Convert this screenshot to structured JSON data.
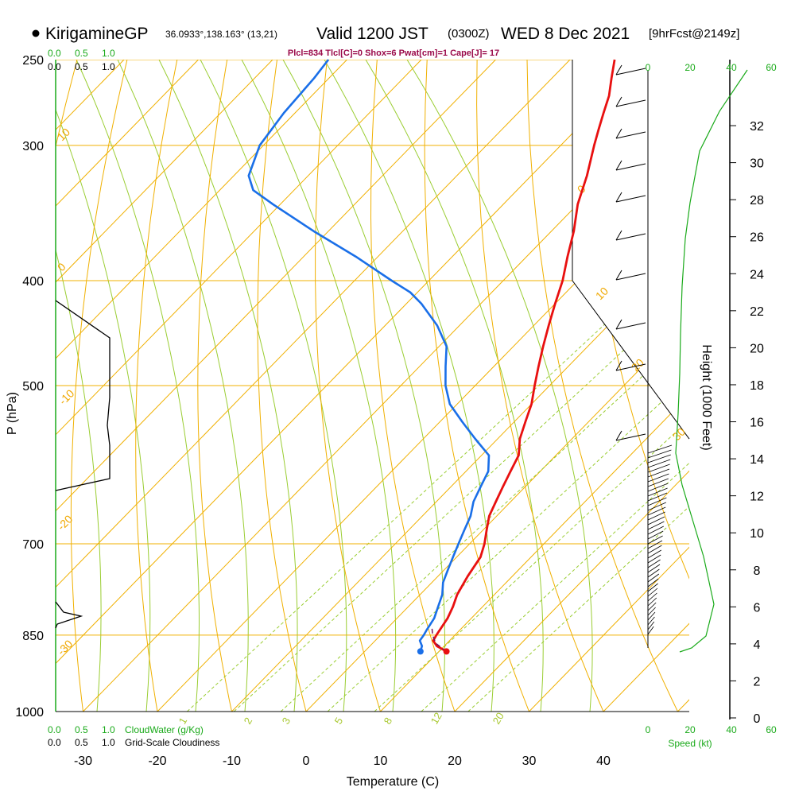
{
  "header": {
    "station": "KirigamineGP",
    "coords": "36.0933°,138.163° (13,21)",
    "valid_prefix": "Valid 1200 JST",
    "valid_z": "(0300Z)",
    "date": "WED 8 Dec 2021",
    "forecast": "[9hrFcst@2149z]",
    "params": "Plcl=834 Tlcl[C]=0 Shox=6 Pwat[cm]=1 Cape[J]= 17"
  },
  "labels": {
    "cloud_water": "CloudWater (g/Kg)",
    "cloudiness": "Grid-Scale Cloudiness",
    "speed": "Speed (kt)",
    "scale_top": [
      "0.0",
      "0.5",
      "1.0"
    ],
    "speed_ticks": [
      "0",
      "20",
      "40",
      "60"
    ]
  },
  "colors": {
    "temperature": "#e81010",
    "dewpoint": "#1a6fe8",
    "isotherm": "#f0b000",
    "dry_adiabat": "#f0b000",
    "moist_adiabat": "#9acd32",
    "mixing_ratio": "#9acd32",
    "cloudiness": "#000000",
    "wind_speed": "#1aaa1a",
    "parcel": "#7a1a5a"
  },
  "chart_data": {
    "type": "line",
    "title": "KirigamineGP",
    "xlabel": "Temperature (C)",
    "ylabel": "P (hPa)",
    "y2label": "Height (1000 Feet)",
    "x_ticks": [
      "-30",
      "-20",
      "-10",
      "0",
      "10",
      "20",
      "30",
      "40"
    ],
    "p_ticks": [
      "250",
      "300",
      "400",
      "500",
      "700",
      "850",
      "1000"
    ],
    "height_ticks": [
      "0",
      "2",
      "4",
      "6",
      "8",
      "10",
      "12",
      "14",
      "16",
      "18",
      "20",
      "22",
      "24",
      "26",
      "28",
      "30",
      "32"
    ],
    "isotherm_labels": [
      "10",
      "0",
      "-10",
      "-20",
      "-30",
      "0",
      "10",
      "20",
      "30"
    ],
    "mixing_ratio_labels": [
      "1",
      "2",
      "3",
      "5",
      "8",
      "12",
      "20"
    ],
    "series": [
      {
        "name": "Temperature",
        "points": [
          [
            880,
            11.0
          ],
          [
            870,
            9.0
          ],
          [
            860,
            7.8
          ],
          [
            850,
            7.5
          ],
          [
            820,
            6.8
          ],
          [
            800,
            6.0
          ],
          [
            780,
            5.0
          ],
          [
            750,
            4.0
          ],
          [
            720,
            3.2
          ],
          [
            700,
            2.0
          ],
          [
            680,
            0.5
          ],
          [
            660,
            -1.0
          ],
          [
            640,
            -2.0
          ],
          [
            620,
            -3.0
          ],
          [
            600,
            -4.0
          ],
          [
            580,
            -5.0
          ],
          [
            560,
            -7.0
          ],
          [
            540,
            -8.5
          ],
          [
            520,
            -10.0
          ],
          [
            500,
            -12.0
          ],
          [
            480,
            -14.0
          ],
          [
            460,
            -16.0
          ],
          [
            440,
            -18.0
          ],
          [
            420,
            -20.0
          ],
          [
            400,
            -22.0
          ],
          [
            380,
            -24.5
          ],
          [
            360,
            -27.0
          ],
          [
            340,
            -30.0
          ],
          [
            320,
            -32.5
          ],
          [
            300,
            -35.5
          ],
          [
            290,
            -37.0
          ],
          [
            280,
            -38.5
          ],
          [
            270,
            -40.0
          ],
          [
            260,
            -42.0
          ],
          [
            250,
            -44.0
          ]
        ]
      },
      {
        "name": "Dewpoint",
        "points": [
          [
            880,
            7.5
          ],
          [
            870,
            7.0
          ],
          [
            860,
            6.0
          ],
          [
            850,
            5.8
          ],
          [
            840,
            5.5
          ],
          [
            820,
            5.0
          ],
          [
            800,
            4.0
          ],
          [
            780,
            3.0
          ],
          [
            760,
            1.5
          ],
          [
            740,
            0.5
          ],
          [
            720,
            -0.5
          ],
          [
            700,
            -1.5
          ],
          [
            680,
            -2.5
          ],
          [
            660,
            -3.5
          ],
          [
            640,
            -5.0
          ],
          [
            620,
            -6.0
          ],
          [
            600,
            -7.0
          ],
          [
            580,
            -9.0
          ],
          [
            560,
            -13.0
          ],
          [
            540,
            -17.0
          ],
          [
            520,
            -21.0
          ],
          [
            500,
            -24.0
          ],
          [
            480,
            -26.5
          ],
          [
            460,
            -29.0
          ],
          [
            440,
            -33.0
          ],
          [
            420,
            -38.0
          ],
          [
            410,
            -41.0
          ],
          [
            400,
            -45.0
          ],
          [
            380,
            -53.0
          ],
          [
            360,
            -62.0
          ],
          [
            340,
            -71.0
          ],
          [
            330,
            -75.5
          ],
          [
            320,
            -78.0
          ],
          [
            300,
            -80.5
          ],
          [
            280,
            -81.5
          ],
          [
            260,
            -82.0
          ],
          [
            250,
            -82.5
          ]
        ]
      }
    ],
    "parcel": [
      [
        880,
        11.0
      ],
      [
        865,
        8.5
      ],
      [
        850,
        7.0
      ],
      [
        835,
        5.8
      ]
    ]
  }
}
